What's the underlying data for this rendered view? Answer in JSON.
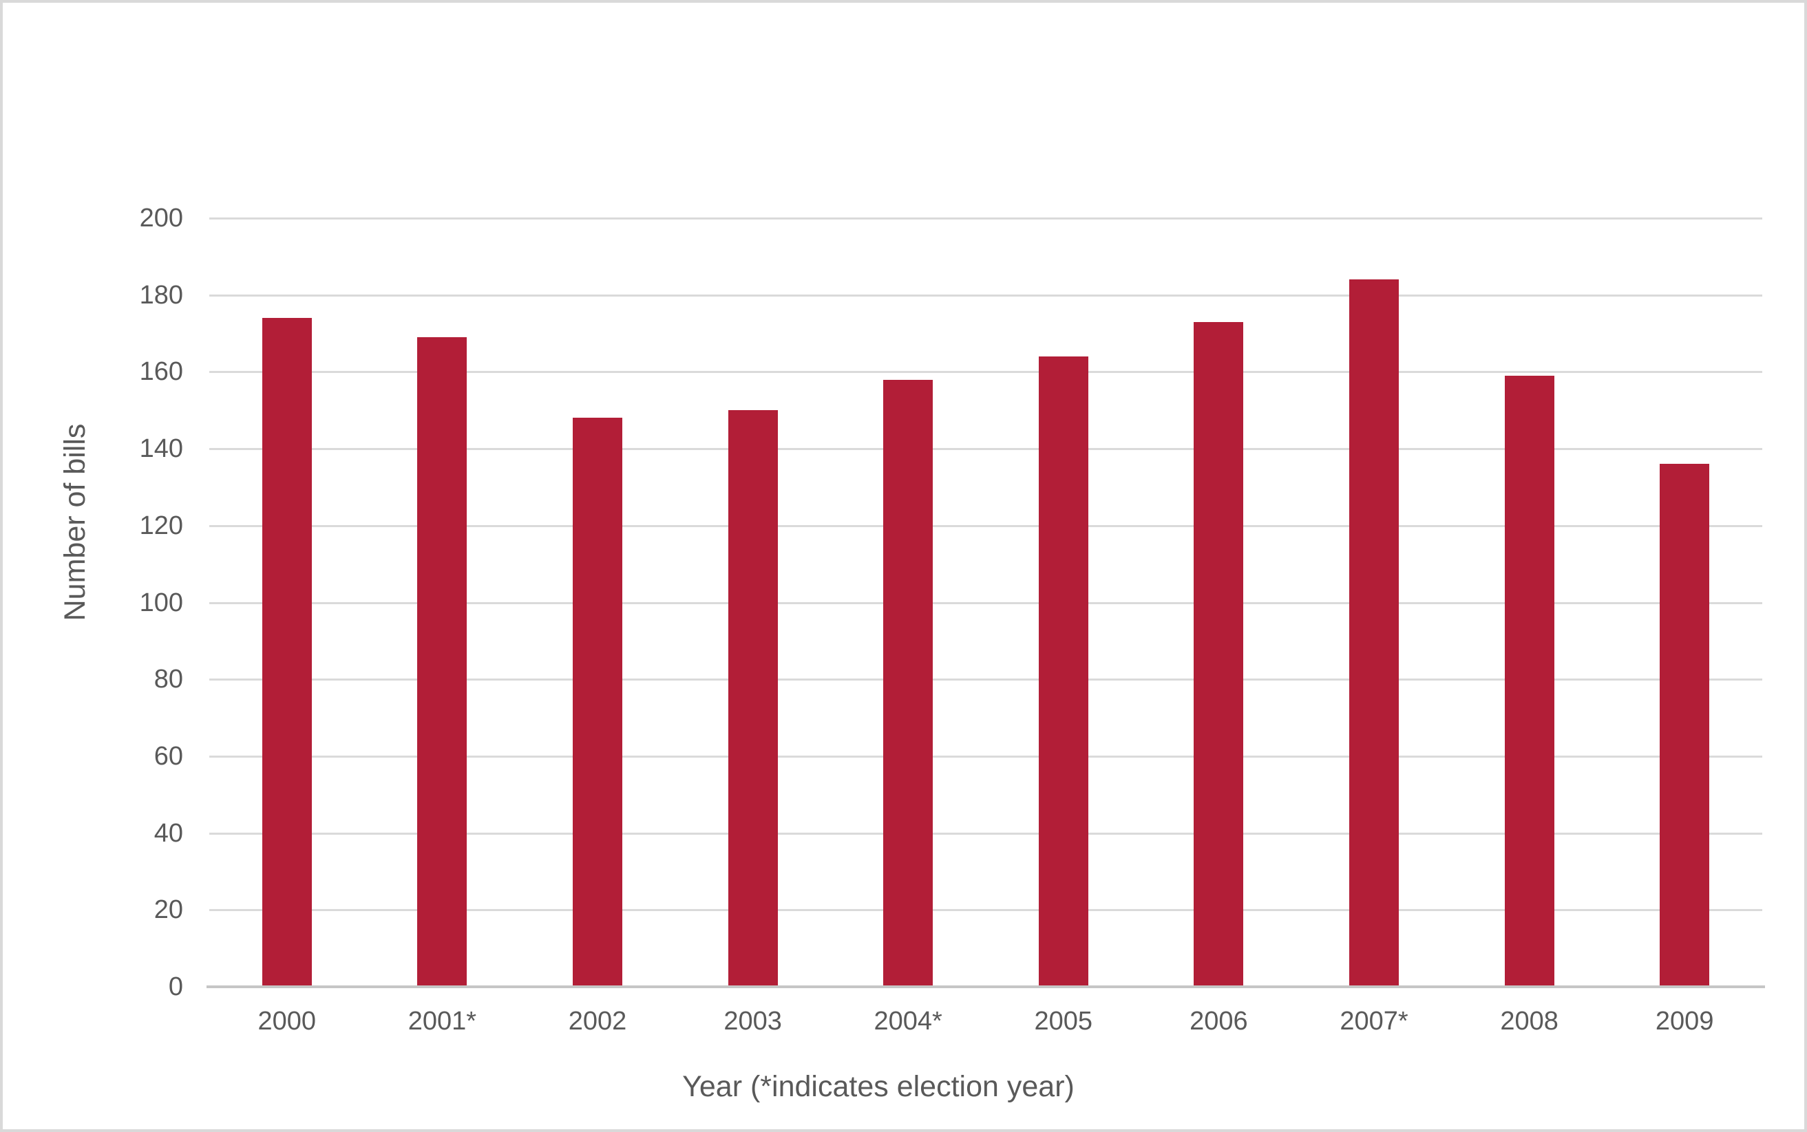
{
  "chart_data": {
    "type": "bar",
    "title": "",
    "categories": [
      "2000",
      "2001*",
      "2002",
      "2003",
      "2004*",
      "2005",
      "2006",
      "2007*",
      "2008",
      "2009"
    ],
    "values": [
      174,
      169,
      148,
      150,
      158,
      164,
      173,
      184,
      159,
      136
    ],
    "xlabel": "Year (*indicates election year)",
    "ylabel": "Number of bills",
    "ylim": [
      0,
      200
    ],
    "yticks": [
      0,
      20,
      40,
      60,
      80,
      100,
      120,
      140,
      160,
      180,
      200
    ],
    "grid": "horizontal",
    "legend": "none",
    "colors": {
      "bar": "#b21e37",
      "gridline": "#dadada",
      "axis_line": "#c6c6c6",
      "text": "#595959",
      "frame_border": "#d9d9d9",
      "background": "#ffffff"
    }
  }
}
